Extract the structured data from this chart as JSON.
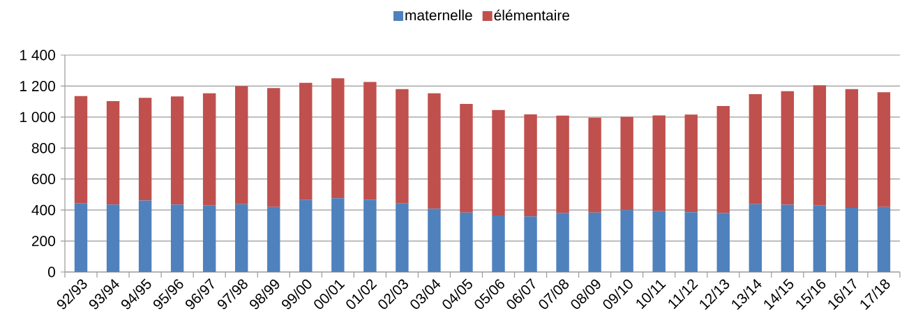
{
  "chart_data": {
    "type": "bar",
    "stacked": true,
    "categories": [
      "92/93",
      "93/94",
      "94/95",
      "95/96",
      "96/97",
      "97/98",
      "98/99",
      "99/00",
      "00/01",
      "01/02",
      "02/03",
      "03/04",
      "04/05",
      "05/06",
      "06/07",
      "07/08",
      "08/09",
      "09/10",
      "10/11",
      "11/12",
      "12/13",
      "13/14",
      "14/15",
      "15/16",
      "16/17",
      "17/18"
    ],
    "series": [
      {
        "name": "maternelle",
        "color": "#4f81bd",
        "values": [
          444,
          435,
          461,
          435,
          431,
          438,
          420,
          465,
          476,
          467,
          444,
          408,
          384,
          365,
          359,
          381,
          384,
          399,
          393,
          386,
          381,
          438,
          434,
          431,
          414,
          420
        ]
      },
      {
        "name": "élémentaire",
        "color": "#c0504d",
        "values": [
          692,
          668,
          663,
          698,
          723,
          762,
          767,
          756,
          774,
          760,
          737,
          746,
          701,
          681,
          658,
          629,
          612,
          603,
          618,
          630,
          690,
          710,
          733,
          774,
          767,
          740
        ]
      }
    ],
    "ylim": [
      0,
      1400
    ],
    "yticks": [
      0,
      200,
      400,
      600,
      800,
      {
        "value": 1000,
        "label": "1 000"
      },
      {
        "value": 1200,
        "label": "1 200"
      },
      {
        "value": 1400,
        "label": "1 400"
      }
    ],
    "grid": "y",
    "legend": "top"
  }
}
